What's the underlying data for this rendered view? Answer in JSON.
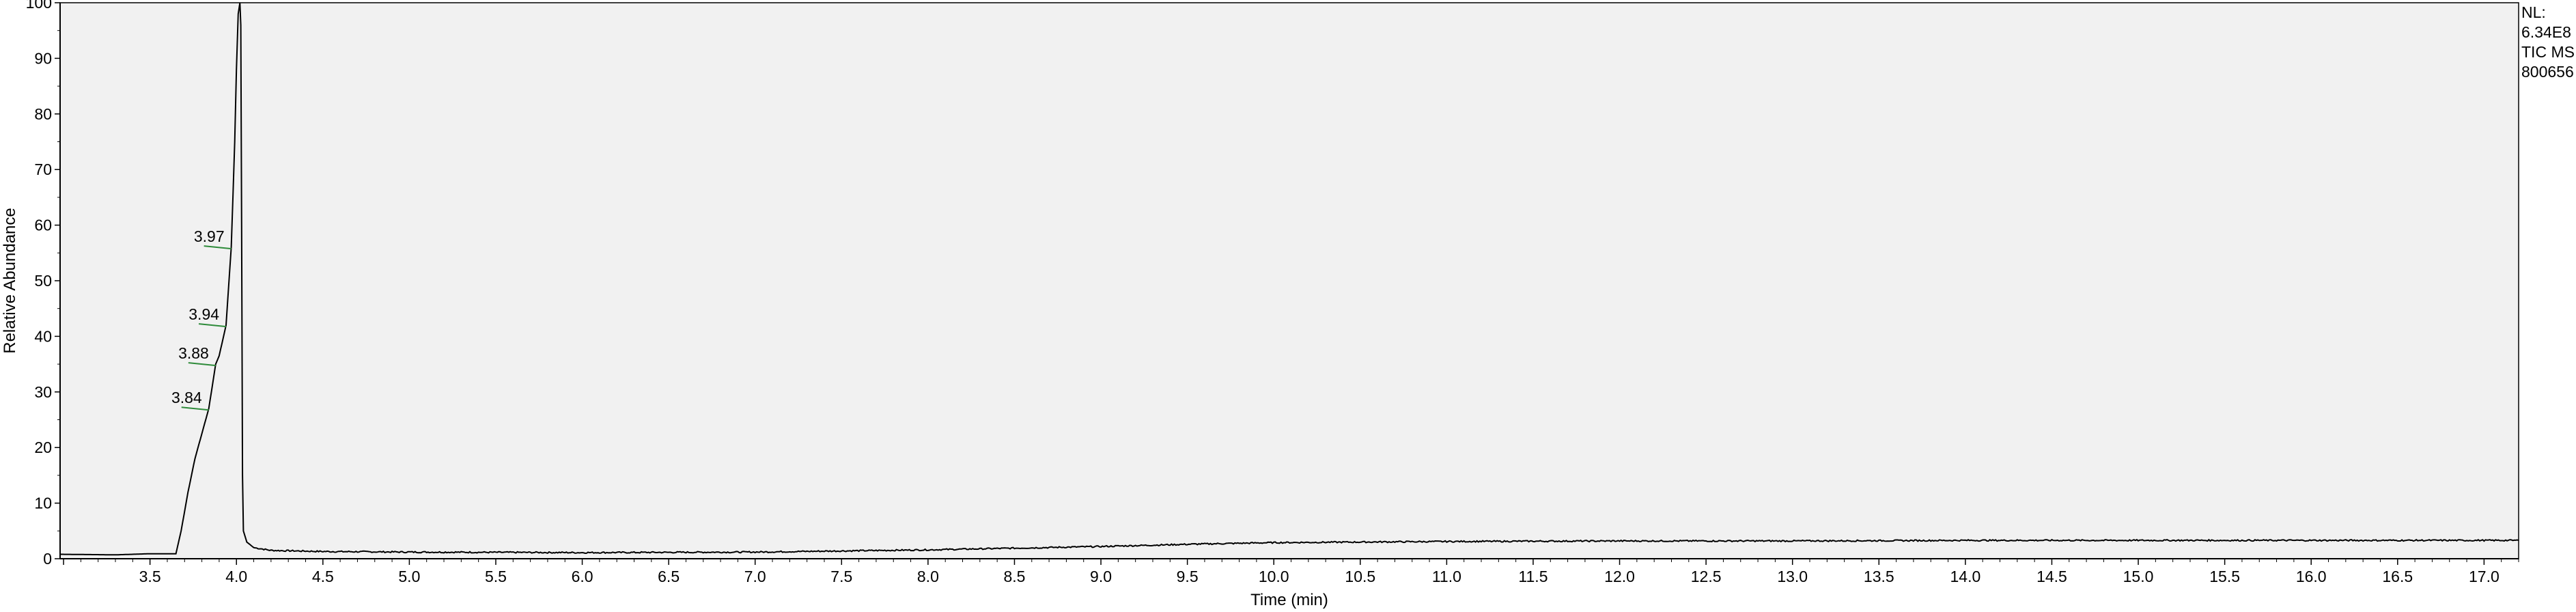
{
  "chart_data": {
    "type": "line",
    "xlabel": "Time (min)",
    "ylabel": "Relative Abundance",
    "xlim": [
      2.98,
      17.2
    ],
    "ylim": [
      0,
      100
    ],
    "x_ticks": [
      "3.5",
      "4.0",
      "4.5",
      "5.0",
      "5.5",
      "6.0",
      "6.5",
      "7.0",
      "7.5",
      "8.0",
      "8.5",
      "9.0",
      "9.5",
      "10.0",
      "10.5",
      "11.0",
      "11.5",
      "12.0",
      "12.5",
      "13.0",
      "13.5",
      "14.0",
      "14.5",
      "15.0",
      "15.5",
      "16.0",
      "16.5",
      "17.0"
    ],
    "x_tick_values": [
      3.5,
      4.0,
      4.5,
      5.0,
      5.5,
      6.0,
      6.5,
      7.0,
      7.5,
      8.0,
      8.5,
      9.0,
      9.5,
      10.0,
      10.5,
      11.0,
      11.5,
      12.0,
      12.5,
      13.0,
      13.5,
      14.0,
      14.5,
      15.0,
      15.5,
      16.0,
      16.5,
      17.0
    ],
    "y_ticks": [
      "0",
      "10",
      "20",
      "30",
      "40",
      "50",
      "60",
      "70",
      "80",
      "90",
      "100"
    ],
    "y_tick_values": [
      0,
      10,
      20,
      30,
      40,
      50,
      60,
      70,
      80,
      90,
      100
    ],
    "grid": false,
    "series": [
      {
        "x": [
          2.98,
          3.3,
          3.5,
          3.65,
          3.68,
          3.72,
          3.76,
          3.8,
          3.84,
          3.88,
          3.9,
          3.94,
          3.97,
          3.99,
          4.0,
          4.01,
          4.02,
          4.025,
          4.03,
          4.035,
          4.04,
          4.06,
          4.1,
          4.2,
          4.5,
          5.0,
          6.0,
          7.0,
          7.5,
          8.0,
          8.5,
          9.0,
          9.5,
          10.0,
          10.5,
          11.0,
          12.0,
          13.0,
          14.0,
          15.0,
          16.0,
          17.2
        ],
        "y": [
          0.8,
          0.7,
          0.9,
          0.9,
          5.0,
          12.0,
          18.0,
          22.5,
          27.0,
          35.0,
          36.5,
          42.0,
          56.0,
          75.0,
          88.0,
          98.0,
          100.0,
          96.0,
          60.0,
          15.0,
          5.0,
          3.0,
          2.0,
          1.5,
          1.3,
          1.2,
          1.1,
          1.2,
          1.4,
          1.6,
          1.9,
          2.2,
          2.6,
          2.9,
          3.0,
          3.1,
          3.2,
          3.2,
          3.3,
          3.3,
          3.3,
          3.3
        ]
      }
    ],
    "peaks": [
      {
        "rt": "4.02",
        "x": 4.02,
        "y": 100
      },
      {
        "rt": "3.97",
        "x": 3.97,
        "y": 56
      },
      {
        "rt": "3.94",
        "x": 3.94,
        "y": 42
      },
      {
        "rt": "3.88",
        "x": 3.88,
        "y": 35
      },
      {
        "rt": "3.84",
        "x": 3.84,
        "y": 27
      }
    ]
  },
  "info": {
    "nl_label": "NL:",
    "nl_value": "6.34E8",
    "trace": "TIC  MS",
    "sample": "800656"
  },
  "colors": {
    "plot_background": "#f1f1f1",
    "trace": "#000000",
    "peak_marker": "#2e8b3a"
  }
}
